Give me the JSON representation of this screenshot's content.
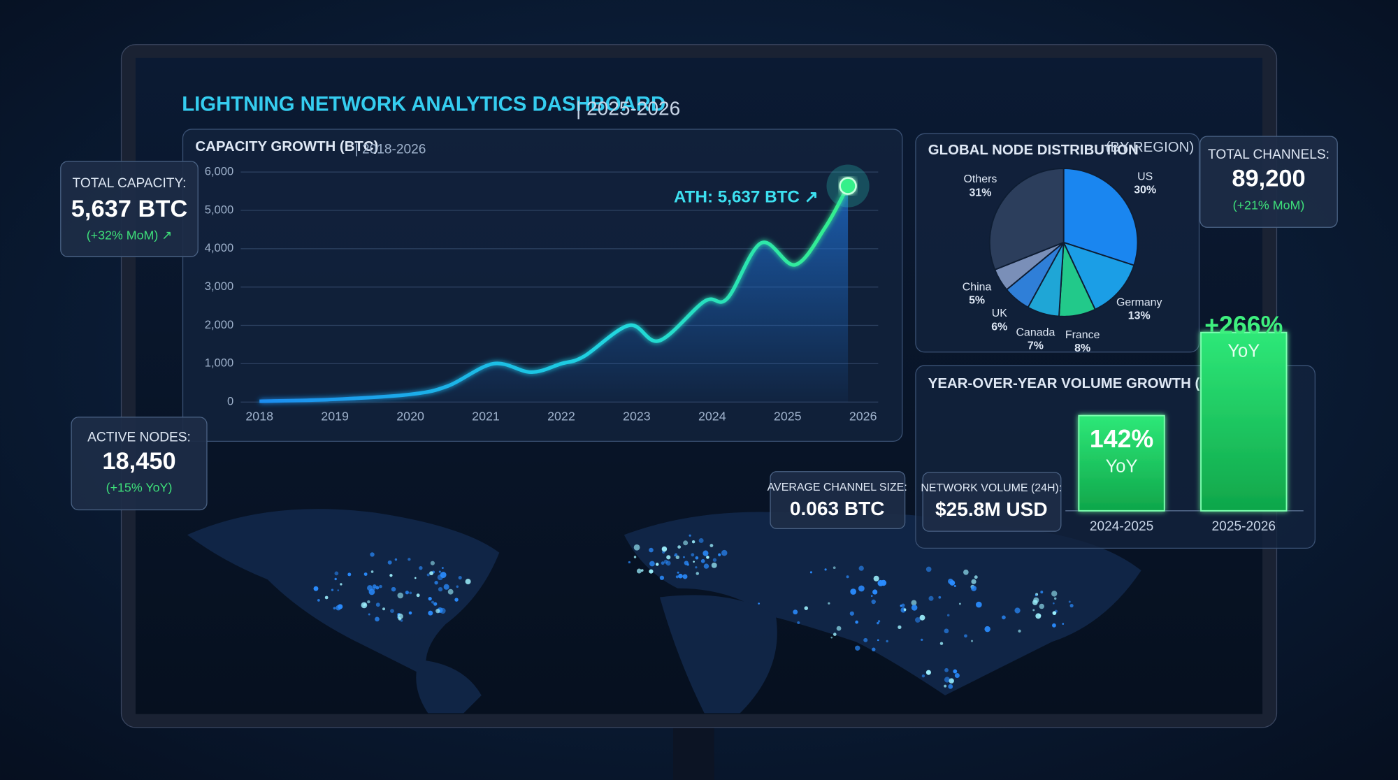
{
  "title": "LIGHTNING NETWORK ANALYTICS DASHBOARD",
  "title_suffix": "| 2025-2026",
  "kpis": [
    {
      "label": "TOTAL CAPACITY:",
      "value": "5,637 BTC",
      "change": "(+32% MoM) ↗"
    },
    {
      "label": "ACTIVE NODES:",
      "value": "18,450",
      "change": "(+15% YoY)"
    },
    {
      "label": "TOTAL CHANNELS:",
      "value": "89,200",
      "change": "(+21% MoM)"
    },
    {
      "label": "AVERAGE CHANNEL SIZE:",
      "value": "0.063 BTC"
    },
    {
      "label": "NETWORK VOLUME (24H):",
      "value": "$25.8M USD"
    }
  ],
  "chart_data": [
    {
      "type": "line",
      "title": "CAPACITY GROWTH (BTC)",
      "subtitle": "| 2018-2026",
      "x": [
        2018,
        2019,
        2020,
        2020.5,
        2021.1,
        2021.6,
        2022,
        2022.3,
        2022.9,
        2023.3,
        2023.9,
        2024.2,
        2024.65,
        2025.1,
        2025.5,
        2025.8
      ],
      "series": [
        {
          "name": "Capacity (BTC)",
          "color": "#2bd9c8",
          "values": [
            20,
            70,
            200,
            420,
            1000,
            780,
            1000,
            1190,
            2000,
            1600,
            2630,
            2700,
            4150,
            3580,
            4560,
            5637
          ]
        }
      ],
      "xlim": [
        2018,
        2026
      ],
      "xticks": [
        2018,
        2019,
        2020,
        2021,
        2022,
        2023,
        2024,
        2025,
        2026
      ],
      "ylim": [
        0,
        6000
      ],
      "yticks": [
        0,
        {
          "value": 1000,
          "label": "1,000"
        },
        {
          "value": 2000,
          "label": "2,000"
        },
        {
          "value": 3000,
          "label": "3,000"
        },
        {
          "value": 4000,
          "label": "4,000"
        },
        {
          "value": 5000,
          "label": "5,000"
        },
        {
          "value": 6000,
          "label": "6,000"
        }
      ],
      "grid": true,
      "annotation": "ATH: 5,637 BTC ↗"
    },
    {
      "type": "pie",
      "title": "GLOBAL NODE DISTRIBUTION",
      "subtitle": "(BY REGION)",
      "categories": [
        "US",
        "Germany",
        "France",
        "Canada",
        "UK",
        "China",
        "Others"
      ],
      "values": [
        30,
        13,
        8,
        7,
        6,
        5,
        31
      ],
      "value_labels": [
        "30%",
        "13%",
        "8%",
        "7%",
        "6%",
        "5%",
        "31%"
      ],
      "colors": [
        "#1a86f0",
        "#1b9ee6",
        "#22c98a",
        "#1fa6d6",
        "#2f7fd8",
        "#7a8fb8",
        "#2c3e5c"
      ]
    },
    {
      "type": "bar",
      "title": "YEAR-OVER-YEAR VOLUME GROWTH (YoY)",
      "categories": [
        "2024-2025",
        "2025-2026"
      ],
      "values": [
        142,
        266
      ],
      "value_labels": [
        "142%",
        "+266%"
      ],
      "unit_label": "YoY",
      "color": "#22d46a"
    }
  ]
}
